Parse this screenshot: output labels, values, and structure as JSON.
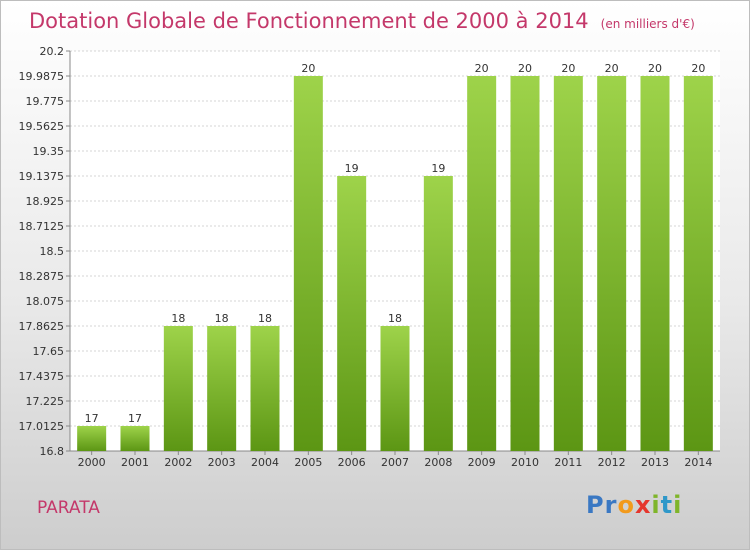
{
  "title": "Dotation Globale de Fonctionnement de 2000 à 2014",
  "unit_note": "(en milliers d'€)",
  "commune": "PARATA",
  "logo": {
    "text": "Proxiti",
    "letters": [
      "P",
      "r",
      "o",
      "x",
      "i",
      "t",
      "i"
    ],
    "colors": [
      "#3a78c3",
      "#3a78c3",
      "#f29a1c",
      "#e5362d",
      "#7fb52a",
      "#2f98c9",
      "#7fb52a"
    ]
  },
  "colors": {
    "bar_top": "#9ed34a",
    "bar_bottom": "#5c9614",
    "title": "#c4386a"
  },
  "chart_data": {
    "type": "bar",
    "title": "Dotation Globale de Fonctionnement de 2000 à 2014",
    "ylabel": "(en milliers d'€)",
    "categories": [
      "2000",
      "2001",
      "2002",
      "2003",
      "2004",
      "2005",
      "2006",
      "2007",
      "2008",
      "2009",
      "2010",
      "2011",
      "2012",
      "2013",
      "2014"
    ],
    "values": [
      17,
      17,
      18,
      18,
      18,
      20,
      19,
      18,
      19,
      20,
      20,
      20,
      20,
      20,
      20
    ],
    "bar_labels": [
      "17",
      "17",
      "18",
      "18",
      "18",
      "20",
      "19",
      "18",
      "19",
      "20",
      "20",
      "20",
      "20",
      "20",
      "20"
    ],
    "bar_levels": [
      17.0125,
      17.0125,
      17.8625,
      17.8625,
      17.8625,
      19.9875,
      19.1375,
      17.8625,
      19.1375,
      19.9875,
      19.9875,
      19.9875,
      19.9875,
      19.9875,
      19.9875
    ],
    "yticks": [
      "16.8",
      "17.0125",
      "17.225",
      "17.4375",
      "17.65",
      "17.8625",
      "18.075",
      "18.2875",
      "18.5",
      "18.7125",
      "18.925",
      "19.1375",
      "19.35",
      "19.5625",
      "19.775",
      "19.9875",
      "20.2"
    ],
    "ylim": [
      16.8,
      20.2
    ],
    "grid": true,
    "legend": "none"
  }
}
